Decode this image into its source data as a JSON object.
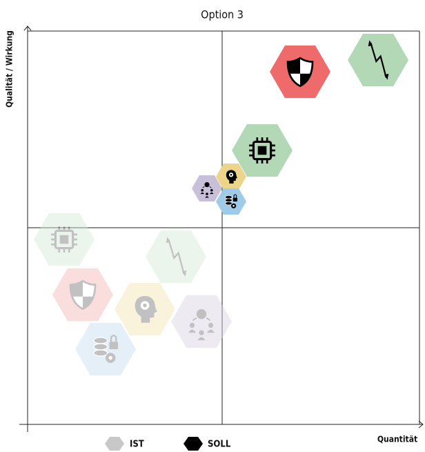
{
  "title": "Option 3",
  "x_axis_label": "Quantität",
  "y_axis_label": "Qualität / Wirkung",
  "legend": [
    "IST",
    "SOLL"
  ]
}
